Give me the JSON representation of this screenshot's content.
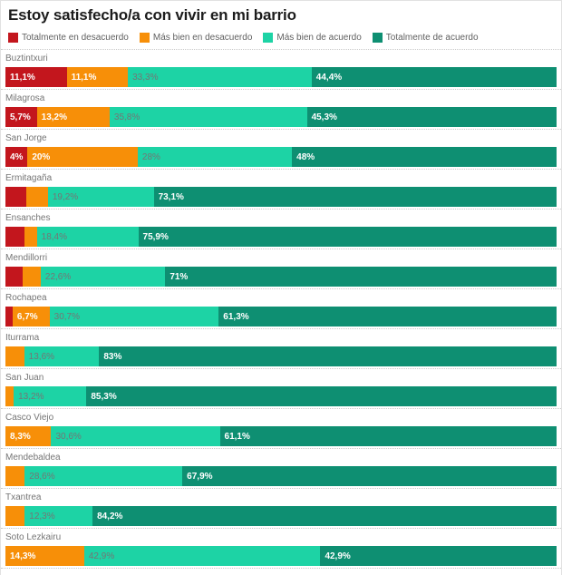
{
  "title": "Estoy satisfecho/a con vivir en mi barrio",
  "legend": {
    "items": [
      {
        "label": "Totalmente en desacuerdo",
        "color": "#c3161d"
      },
      {
        "label": "Más bien en desacuerdo",
        "color": "#f78f08"
      },
      {
        "label": "Más bien de acuerdo",
        "color": "#1dd3a5"
      },
      {
        "label": "Totalmente de acuerdo",
        "color": "#0e8f72"
      }
    ]
  },
  "chart_data": {
    "type": "bar",
    "orientation": "horizontal",
    "stacked": "100%",
    "value_unit": "percent",
    "title": "Estoy satisfecho/a con vivir en mi barrio",
    "legend_position": "top",
    "grid": false,
    "xlim": [
      0,
      100
    ],
    "categories": [
      "Buztintxuri",
      "Milagrosa",
      "San Jorge",
      "Ermitagaña",
      "Ensanches",
      "Mendillorri",
      "Rochapea",
      "Iturrama",
      "San Juan",
      "Casco Viejo",
      "Mendebaldea",
      "Txantrea",
      "Soto Lezkairu"
    ],
    "series": [
      {
        "name": "Totalmente en desacuerdo",
        "color": "#c3161d",
        "values": [
          11.1,
          5.7,
          4,
          3.8,
          3.4,
          3.2,
          1.3,
          0,
          0,
          0,
          0,
          0,
          0
        ],
        "display_labels": [
          "11,1%",
          "5,7%",
          "4%",
          "",
          "",
          "",
          "",
          "",
          "",
          "",
          "",
          "",
          ""
        ]
      },
      {
        "name": "Más bien en desacuerdo",
        "color": "#f78f08",
        "values": [
          11.1,
          13.2,
          20,
          3.9,
          2.3,
          3.2,
          6.7,
          3.4,
          1.5,
          8.3,
          3.5,
          3.5,
          14.3
        ],
        "display_labels": [
          "11,1%",
          "13,2%",
          "20%",
          "",
          "",
          "",
          "6,7%",
          "",
          "",
          "8,3%",
          "",
          "",
          "14,3%"
        ]
      },
      {
        "name": "Más bien de acuerdo",
        "color": "#1dd3a5",
        "values": [
          33.3,
          35.8,
          28,
          19.2,
          18.4,
          22.6,
          30.7,
          13.6,
          13.2,
          30.6,
          28.6,
          12.3,
          42.9
        ],
        "display_labels": [
          "33,3%",
          "35,8%",
          "28%",
          "19,2%",
          "18,4%",
          "22,6%",
          "30,7%",
          "13,6%",
          "13,2%",
          "30,6%",
          "28,6%",
          "12,3%",
          "42,9%"
        ]
      },
      {
        "name": "Totalmente de acuerdo",
        "color": "#0e8f72",
        "values": [
          44.4,
          45.3,
          48,
          73.1,
          75.9,
          71,
          61.3,
          83,
          85.3,
          61.1,
          67.9,
          84.2,
          42.9
        ],
        "display_labels": [
          "44,4%",
          "45,3%",
          "48%",
          "73,1%",
          "75,9%",
          "71%",
          "61,3%",
          "83%",
          "85,3%",
          "61,1%",
          "67,9%",
          "84,2%",
          "42,9%"
        ]
      }
    ],
    "note_unlabeled_segments": "segments without a visible percentage label have values estimated from bar widths"
  }
}
